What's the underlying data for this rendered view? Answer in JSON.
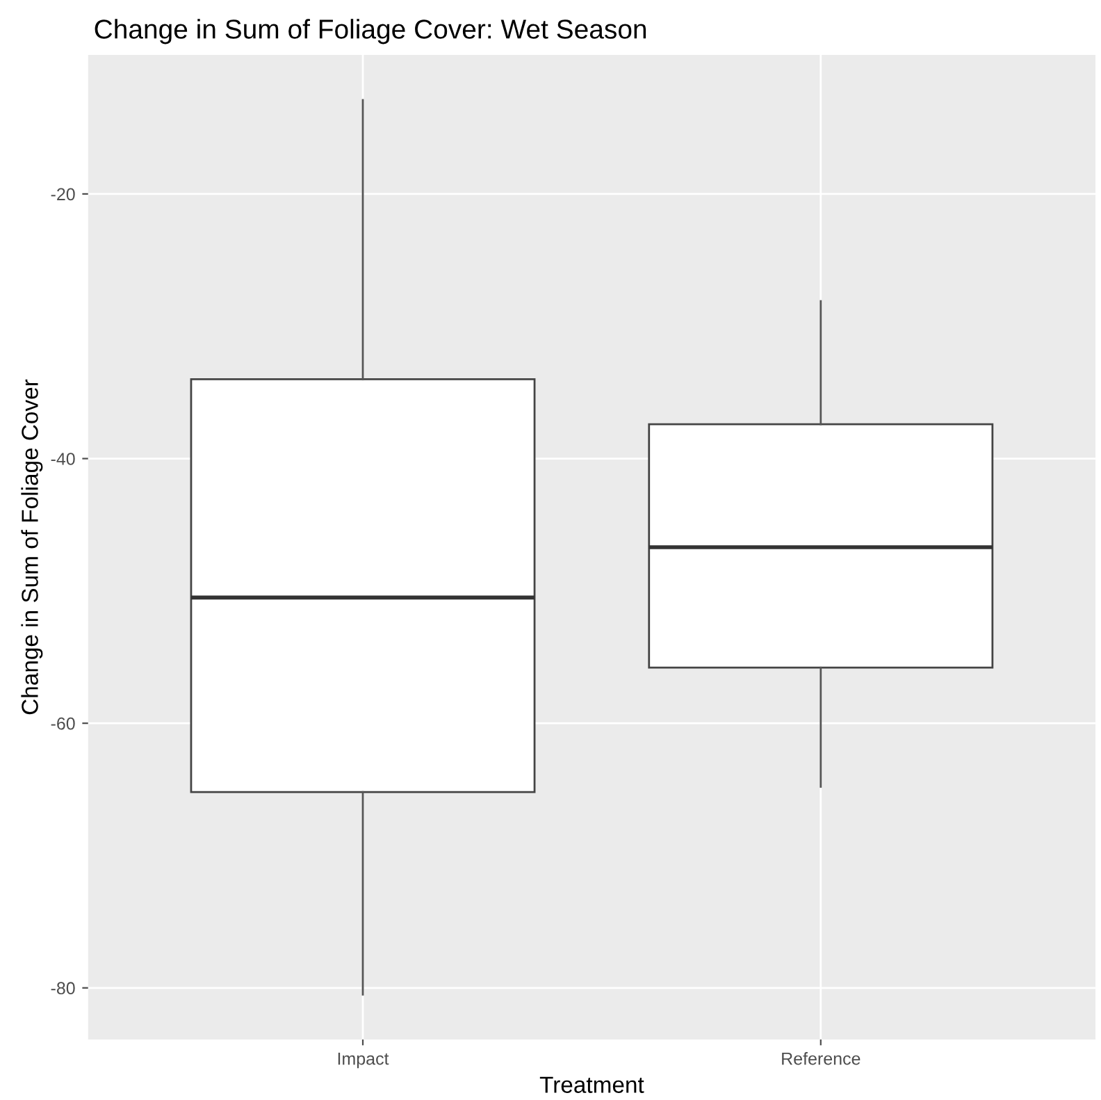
{
  "chart_data": {
    "type": "box",
    "title": "Change in Sum of Foliage Cover: Wet Season",
    "xlabel": "Treatment",
    "ylabel": "Change in Sum of Foliage Cover",
    "categories": [
      "Impact",
      "Reference"
    ],
    "boxes": [
      {
        "low": -80.5,
        "q1": -65.2,
        "median": -50.5,
        "q3": -34,
        "high": -12.9
      },
      {
        "low": -64.8,
        "q1": -55.8,
        "median": -46.7,
        "q3": -37.4,
        "high": -28.1
      }
    ],
    "color": "#ffffff",
    "ylim": [
      -83.9,
      -9.5
    ],
    "yticks": [
      -20,
      -40,
      -60,
      -80
    ],
    "grid": true
  }
}
